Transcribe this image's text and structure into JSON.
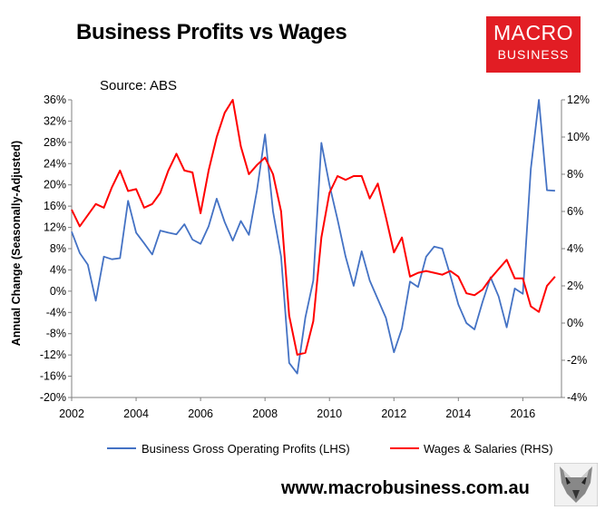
{
  "title": "Business Profits vs Wages",
  "source": "Source: ABS",
  "logo": {
    "line1": "MACRO",
    "line2": "BUSINESS"
  },
  "url": "www.macrobusiness.com.au",
  "colors": {
    "profits": "#4472c4",
    "wages": "#ff0000",
    "logo_bg": "#e21d24"
  },
  "chart_data": {
    "type": "line",
    "ylabel": "Annual Change (Seasonally-Adjusted)",
    "xlim": [
      2002,
      2017.2
    ],
    "x_ticks": [
      2002,
      2004,
      2006,
      2008,
      2010,
      2012,
      2014,
      2016
    ],
    "y_left": {
      "lim": [
        -20,
        36
      ],
      "ticks": [
        -20,
        -16,
        -12,
        -8,
        -4,
        0,
        4,
        8,
        12,
        16,
        20,
        24,
        28,
        32,
        36
      ],
      "tick_labels": [
        "-20%",
        "-16%",
        "-12%",
        "-8%",
        "-4%",
        "0%",
        "4%",
        "8%",
        "12%",
        "16%",
        "20%",
        "24%",
        "28%",
        "32%",
        "36%"
      ]
    },
    "y_right": {
      "lim": [
        -4,
        12
      ],
      "ticks": [
        -4,
        -2,
        0,
        2,
        4,
        6,
        8,
        10,
        12
      ],
      "tick_labels": [
        "-4%",
        "-2%",
        "0%",
        "2%",
        "4%",
        "6%",
        "8%",
        "10%",
        "12%"
      ]
    },
    "grid": false,
    "legend_position": "bottom",
    "series": [
      {
        "name": "Business Gross Operating Profits (LHS)",
        "axis": "left",
        "x": [
          2002.0,
          2002.25,
          2002.5,
          2002.75,
          2003.0,
          2003.25,
          2003.5,
          2003.75,
          2004.0,
          2004.25,
          2004.5,
          2004.75,
          2005.0,
          2005.25,
          2005.5,
          2005.75,
          2006.0,
          2006.25,
          2006.5,
          2006.75,
          2007.0,
          2007.25,
          2007.5,
          2007.75,
          2008.0,
          2008.25,
          2008.5,
          2008.75,
          2009.0,
          2009.25,
          2009.5,
          2009.75,
          2010.0,
          2010.25,
          2010.5,
          2010.75,
          2011.0,
          2011.25,
          2011.5,
          2011.75,
          2012.0,
          2012.25,
          2012.5,
          2012.75,
          2013.0,
          2013.25,
          2013.5,
          2013.75,
          2014.0,
          2014.25,
          2014.5,
          2014.75,
          2015.0,
          2015.25,
          2015.5,
          2015.75,
          2016.0,
          2016.25,
          2016.5,
          2016.75,
          2017.0
        ],
        "values": [
          11.2,
          7.2,
          5.0,
          -1.8,
          6.5,
          6.0,
          6.2,
          17.0,
          11.0,
          9.0,
          6.9,
          11.4,
          11.0,
          10.7,
          12.6,
          9.7,
          8.9,
          12.2,
          17.4,
          13.0,
          9.5,
          13.2,
          10.6,
          19.0,
          29.5,
          15.0,
          6.5,
          -13.5,
          -15.5,
          -5.0,
          2.0,
          27.9,
          20.0,
          13.5,
          6.5,
          1.0,
          7.5,
          2.0,
          -1.5,
          -5.0,
          -11.5,
          -7.0,
          1.8,
          0.8,
          6.5,
          8.4,
          8.0,
          3.0,
          -2.5,
          -6.0,
          -7.2,
          -2.0,
          2.6,
          -1.0,
          -6.8,
          0.5,
          -0.5,
          23.0,
          37.2,
          19.0,
          18.9
        ]
      },
      {
        "name": "Wages & Salaries (RHS)",
        "axis": "right",
        "x": [
          2002.0,
          2002.25,
          2002.5,
          2002.75,
          2003.0,
          2003.25,
          2003.5,
          2003.75,
          2004.0,
          2004.25,
          2004.5,
          2004.75,
          2005.0,
          2005.25,
          2005.5,
          2005.75,
          2006.0,
          2006.25,
          2006.5,
          2006.75,
          2007.0,
          2007.25,
          2007.5,
          2007.75,
          2008.0,
          2008.25,
          2008.5,
          2008.75,
          2009.0,
          2009.25,
          2009.5,
          2009.75,
          2010.0,
          2010.25,
          2010.5,
          2010.75,
          2011.0,
          2011.25,
          2011.5,
          2011.75,
          2012.0,
          2012.25,
          2012.5,
          2012.75,
          2013.0,
          2013.25,
          2013.5,
          2013.75,
          2014.0,
          2014.25,
          2014.5,
          2014.75,
          2015.0,
          2015.25,
          2015.5,
          2015.75,
          2016.0,
          2016.25,
          2016.5,
          2016.75,
          2017.0
        ],
        "values": [
          6.1,
          5.2,
          5.8,
          6.4,
          6.2,
          7.3,
          8.2,
          7.1,
          7.2,
          6.2,
          6.4,
          7.0,
          8.2,
          9.1,
          8.2,
          8.1,
          5.9,
          8.2,
          10.0,
          11.3,
          12.2,
          9.5,
          8.0,
          8.5,
          8.9,
          8.0,
          6.0,
          0.4,
          -1.7,
          -1.6,
          0.1,
          4.6,
          7.0,
          7.9,
          7.7,
          7.9,
          7.9,
          6.7,
          7.5,
          5.7,
          3.8,
          4.6,
          2.5,
          2.7,
          2.8,
          2.7,
          2.6,
          2.8,
          2.5,
          1.6,
          1.5,
          1.8,
          2.4,
          2.9,
          3.4,
          2.4,
          2.4,
          0.9,
          0.6,
          2.0,
          2.5
        ]
      }
    ]
  }
}
